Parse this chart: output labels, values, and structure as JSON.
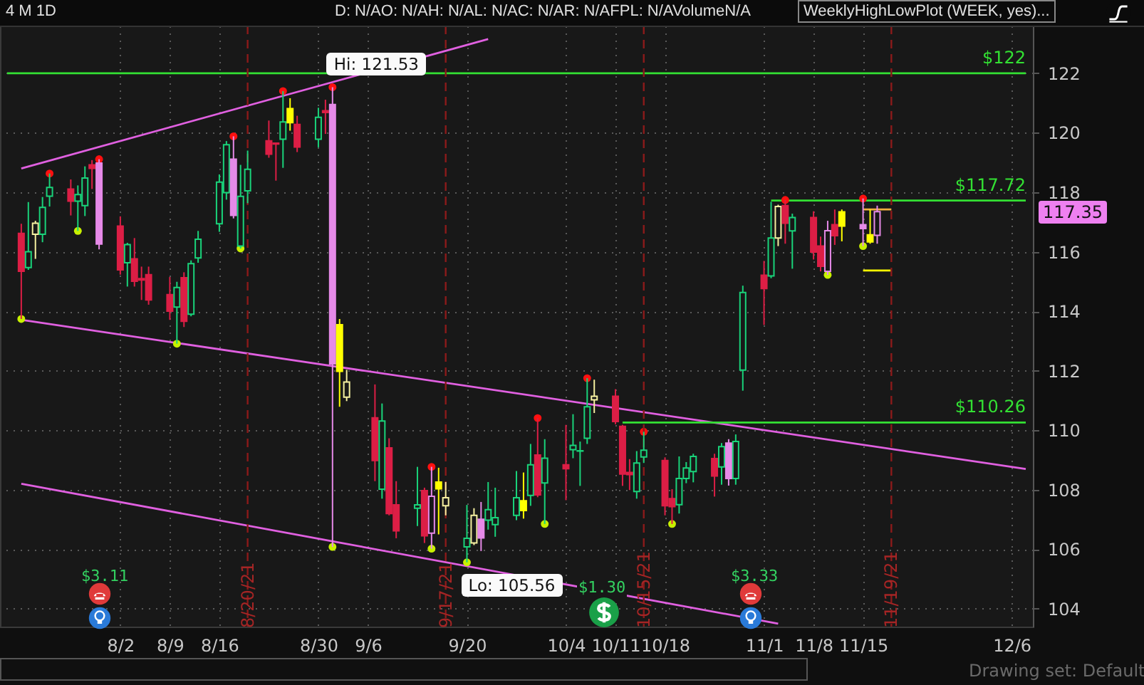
{
  "chart_data": {
    "type": "candlestick",
    "title": "4 M 1D",
    "x": [
      "--07-19",
      "--07-20",
      "--07-21",
      "--07-22",
      "--07-23",
      "--07-26",
      "--07-27",
      "--07-28",
      "--07-29",
      "--07-30",
      "--08-02",
      "--08-03",
      "--08-04",
      "--08-05",
      "--08-06",
      "--08-09",
      "--08-10",
      "--08-11",
      "--08-12",
      "--08-13",
      "--08-16",
      "--08-17",
      "--08-18",
      "--08-19",
      "--08-20",
      "--08-23",
      "--08-24",
      "--08-25",
      "--08-26",
      "--08-27",
      "--08-30",
      "--08-31",
      "--09-01",
      "--09-02",
      "--09-03",
      "--09-07",
      "--09-08",
      "--09-09",
      "--09-10",
      "--09-13",
      "--09-14",
      "--09-15",
      "--09-16",
      "--09-17",
      "--09-20",
      "--09-21",
      "--09-22",
      "--09-23",
      "--09-24",
      "--09-27",
      "--09-28",
      "--09-29",
      "--09-30",
      "--10-01",
      "--10-04",
      "--10-05",
      "--10-06",
      "--10-07",
      "--10-08",
      "--10-11",
      "--10-12",
      "--10-13",
      "--10-14",
      "--10-15",
      "--10-18",
      "--10-19",
      "--10-20",
      "--10-21",
      "--10-22",
      "--10-25",
      "--10-26",
      "--10-27",
      "--10-28",
      "--10-29",
      "--11-01",
      "--11-02",
      "--11-03",
      "--11-04",
      "--11-05",
      "--11-08",
      "--11-09",
      "--11-10",
      "--11-11",
      "--11-12",
      "--11-15",
      "--11-16",
      "--11-17"
    ],
    "ohlc": [
      [
        116.62,
        116.94,
        113.74,
        115.34
      ],
      [
        115.47,
        117.67,
        115.39,
        116.0
      ],
      [
        116.59,
        117.04,
        115.76,
        116.96
      ],
      [
        116.59,
        117.84,
        116.32,
        117.49
      ],
      [
        117.87,
        118.63,
        117.52,
        118.16
      ],
      [
        118.11,
        118.43,
        117.22,
        117.7
      ],
      [
        117.7,
        118.23,
        116.7,
        117.92
      ],
      [
        117.55,
        118.87,
        117.2,
        118.48
      ],
      [
        118.92,
        119.08,
        118.11,
        118.8
      ],
      [
        118.98,
        119.11,
        116.08,
        116.26
      ],
      [
        116.86,
        117.19,
        115.23,
        115.39
      ],
      [
        115.63,
        116.3,
        114.83,
        116.24
      ],
      [
        115.76,
        116.46,
        114.83,
        115.01
      ],
      [
        115.1,
        115.5,
        114.38,
        115.05
      ],
      [
        115.23,
        115.5,
        114.22,
        114.38
      ],
      [
        114.56,
        115.15,
        113.71,
        114.0
      ],
      [
        114.14,
        114.99,
        112.91,
        114.8
      ],
      [
        115.13,
        115.31,
        113.47,
        113.66
      ],
      [
        113.9,
        115.71,
        113.83,
        115.6
      ],
      [
        115.79,
        116.7,
        115.63,
        116.42
      ],
      [
        116.94,
        118.6,
        116.67,
        118.34
      ],
      [
        117.99,
        119.72,
        117.75,
        119.6
      ],
      [
        119.11,
        119.88,
        117.12,
        117.22
      ],
      [
        116.19,
        118.92,
        116.11,
        117.86
      ],
      [
        118.05,
        119.4,
        117.63,
        118.77
      ],
      [
        119.73,
        120.41,
        119.16,
        119.28
      ],
      [
        119.65,
        119.65,
        118.39,
        119.62
      ],
      [
        119.78,
        121.4,
        118.82,
        120.36
      ],
      [
        120.81,
        121.16,
        120.07,
        120.34
      ],
      [
        120.28,
        120.57,
        119.35,
        119.52
      ],
      [
        119.78,
        120.84,
        119.51,
        120.52
      ],
      [
        120.74,
        121.11,
        119.96,
        120.68
      ],
      [
        120.95,
        121.53,
        106.08,
        112.23
      ],
      [
        113.55,
        113.74,
        110.79,
        111.98
      ],
      [
        111.11,
        112.03,
        110.98,
        111.62
      ],
      [
        110.42,
        111.54,
        108.29,
        108.98
      ],
      [
        108.02,
        110.9,
        107.7,
        110.31
      ],
      [
        109.41,
        109.73,
        107.14,
        107.2
      ],
      [
        107.49,
        108.29,
        106.37,
        106.62
      ],
      [
        107.38,
        108.77,
        106.78,
        107.49
      ],
      [
        107.97,
        108.07,
        106.21,
        106.45
      ],
      [
        106.54,
        108.77,
        106.02,
        107.78
      ],
      [
        108.26,
        108.74,
        106.5,
        108.03
      ],
      [
        107.46,
        108.26,
        107.14,
        107.73
      ],
      [
        106.08,
        107.49,
        105.56,
        106.37
      ],
      [
        106.21,
        107.38,
        106.14,
        107.14
      ],
      [
        107.01,
        107.59,
        105.94,
        106.38
      ],
      [
        106.98,
        108.26,
        106.66,
        107.33
      ],
      [
        106.83,
        108.07,
        106.42,
        107.06
      ],
      [
        107.14,
        108.63,
        106.98,
        107.73
      ],
      [
        107.63,
        108.58,
        107.03,
        107.3
      ],
      [
        107.81,
        109.54,
        107.46,
        108.84
      ],
      [
        109.17,
        110.41,
        107.75,
        107.83
      ],
      [
        108.23,
        109.7,
        106.85,
        109.06
      ],
      [
        108.84,
        110.18,
        107.65,
        108.71
      ],
      [
        109.35,
        110.54,
        109.06,
        109.49
      ],
      [
        109.3,
        109.62,
        108.13,
        109.31
      ],
      [
        109.73,
        111.75,
        109.54,
        110.79
      ],
      [
        111.02,
        111.7,
        110.58,
        111.14
      ],
      [
        111.14,
        111.38,
        110.2,
        110.29
      ],
      [
        110.13,
        110.18,
        108.13,
        108.53
      ],
      [
        108.58,
        109.03,
        107.99,
        108.51
      ],
      [
        107.94,
        109.3,
        107.7,
        108.9
      ],
      [
        109.1,
        109.95,
        108.9,
        109.33
      ],
      [
        108.98,
        109.09,
        107.14,
        107.46
      ],
      [
        107.7,
        108.02,
        106.85,
        107.43
      ],
      [
        107.5,
        109.12,
        107.2,
        108.38
      ],
      [
        108.38,
        108.93,
        108.22,
        108.73
      ],
      [
        108.61,
        109.21,
        108.25,
        109.12
      ],
      [
        109.05,
        109.21,
        107.77,
        108.46
      ],
      [
        108.77,
        109.57,
        108.17,
        109.45
      ],
      [
        109.57,
        109.7,
        108.14,
        108.38
      ],
      [
        108.38,
        109.86,
        108.17,
        109.62
      ],
      [
        112.02,
        114.86,
        111.33,
        114.63
      ],
      [
        115.21,
        115.69,
        113.54,
        114.76
      ],
      [
        115.19,
        117.68,
        115.11,
        116.46
      ],
      [
        116.46,
        117.58,
        116.19,
        117.52
      ],
      [
        117.55,
        117.74,
        116.27,
        116.96
      ],
      [
        116.7,
        117.28,
        115.43,
        117.15
      ],
      [
        117.15,
        117.36,
        115.74,
        115.99
      ],
      [
        116.19,
        116.51,
        115.34,
        115.51
      ],
      [
        115.34,
        117.04,
        115.22,
        116.71
      ],
      [
        116.91,
        117.42,
        116.23,
        116.54
      ],
      [
        117.34,
        117.42,
        116.35,
        116.86
      ],
      [
        116.91,
        117.79,
        116.19,
        116.78
      ],
      [
        116.57,
        117.42,
        116.27,
        116.33
      ],
      [
        116.55,
        117.55,
        116.27,
        117.35
      ]
    ],
    "colors": [
      "#dc1e45",
      "#19d37a",
      "#f5f0a0",
      "#19d37a",
      "#19d37a",
      "#dc1e45",
      "#19d37a",
      "#19d37a",
      "#dc1e45",
      "#e68ae8",
      "#dc1e45",
      "#19d37a",
      "#dc1e45",
      "#dc1e45",
      "#dc1e45",
      "#dc1e45",
      "#19d37a",
      "#dc1e45",
      "#19d37a",
      "#19d37a",
      "#19d37a",
      "#19d37a",
      "#e68ae8",
      "#19d37a",
      "#19d37a",
      "#dc1e45",
      "#dc1e45",
      "#19d37a",
      "#ffff00",
      "#dc1e45",
      "#19d37a",
      "#dc1e45",
      "#e68ae8",
      "#ffff00",
      "#f5f0a0",
      "#dc1e45",
      "#19d37a",
      "#dc1e45",
      "#dc1e45",
      "#19d37a",
      "#dc1e45",
      "#e68ae8",
      "#ffff00",
      "#f5f0a0",
      "#19d37a",
      "#f5f0a0",
      "#e68ae8",
      "#19d37a",
      "#19d37a",
      "#19d37a",
      "#ffff00",
      "#19d37a",
      "#dc1e45",
      "#19d37a",
      "#dc1e45",
      "#19d37a",
      "#19d37a",
      "#19d37a",
      "#f5f0a0",
      "#dc1e45",
      "#dc1e45",
      "#dc1e45",
      "#19d37a",
      "#19d37a",
      "#dc1e45",
      "#dc1e45",
      "#19d37a",
      "#19d37a",
      "#19d37a",
      "#dc1e45",
      "#19d37a",
      "#e68ae8",
      "#19d37a",
      "#19d37a",
      "#dc1e45",
      "#19d37a",
      "#f5f0a0",
      "#dc1e45",
      "#19d37a",
      "#dc1e45",
      "#dc1e45",
      "#e68ae8",
      "#dc1e45",
      "#ffff00",
      "#e68ae8",
      "#ffff00",
      "#e68ae8"
    ],
    "series": [
      {
        "type": "line",
        "color": "#e060e0",
        "x": [
          "--07-19",
          "--09-23"
        ],
        "values": [
          118.8,
          123.15
        ]
      },
      {
        "type": "line",
        "color": "#e060e0",
        "x": [
          "--07-19",
          "--12-08"
        ],
        "values": [
          113.71,
          108.7
        ]
      },
      {
        "type": "line",
        "color": "#e060e0",
        "x": [
          "--07-19",
          "--11-03"
        ],
        "values": [
          108.2,
          103.5
        ]
      },
      {
        "type": "line",
        "name": "$122",
        "color": "#33e033",
        "x": [
          "--07-17",
          "--12-08"
        ],
        "values": [
          122,
          122
        ]
      },
      {
        "type": "line",
        "name": "$117.72",
        "color": "#33e033",
        "x": [
          "--11-02",
          "--12-08"
        ],
        "values": [
          117.72,
          117.72
        ]
      },
      {
        "type": "line",
        "name": "$110.26",
        "color": "#33e033",
        "x": [
          "--10-12",
          "--12-08"
        ],
        "values": [
          110.26,
          110.26
        ]
      },
      {
        "type": "line",
        "color": "#f0b040",
        "x": [
          "--11-15",
          "--11-19"
        ],
        "values": [
          117.42,
          117.42
        ]
      },
      {
        "type": "line",
        "color": "#ffff00",
        "x": [
          "--11-15",
          "--11-19"
        ],
        "values": [
          115.37,
          115.37
        ]
      },
      {
        "type": "scatter",
        "color": "#ff1010",
        "x": [
          "--07-23",
          "--07-30",
          "--08-18",
          "--08-25",
          "--09-01",
          "--09-15",
          "--09-30",
          "--10-07",
          "--10-15",
          "--11-04",
          "--11-15"
        ],
        "values": [
          118.63,
          119.11,
          119.88,
          121.4,
          121.53,
          108.77,
          110.41,
          111.75,
          109.95,
          117.74,
          117.79
        ]
      },
      {
        "type": "scatter",
        "color": "#c8f000",
        "x": [
          "--07-19",
          "--07-27",
          "--08-10",
          "--08-19",
          "--09-01",
          "--09-15",
          "--09-20",
          "--10-01",
          "--10-19",
          "--11-10",
          "--11-15"
        ],
        "values": [
          113.74,
          116.7,
          112.91,
          116.11,
          106.08,
          106.02,
          105.56,
          106.85,
          106.85,
          115.22,
          116.19
        ]
      }
    ],
    "ref_lines": [
      {
        "axis": "x",
        "value": "--08-20",
        "label": "8/20/21",
        "color": "#8b1a1a",
        "line_style": "dashed"
      },
      {
        "axis": "x",
        "value": "--09-17",
        "label": "9/17/21",
        "color": "#8b1a1a",
        "line_style": "dashed"
      },
      {
        "axis": "x",
        "value": "--10-15",
        "label": "10/15/21",
        "color": "#8b1a1a",
        "line_style": "dashed"
      },
      {
        "axis": "x",
        "value": "--11-19",
        "label": "11/19/21",
        "color": "#8b1a1a",
        "line_style": "dashed"
      }
    ],
    "xlim": [
      "--07-17",
      "--12-08"
    ],
    "ylim": [
      103.4,
      123.6
    ],
    "yticks": [
      104,
      106,
      108,
      110,
      112,
      114,
      116,
      118,
      120,
      122
    ],
    "xticks": [
      {
        "value": "--08-02",
        "label": "8/2"
      },
      {
        "value": "--08-09",
        "label": "8/9"
      },
      {
        "value": "--08-16",
        "label": "8/16"
      },
      {
        "value": "--08-30",
        "label": "8/30"
      },
      {
        "value": "--09-06",
        "label": "9/6"
      },
      {
        "value": "--09-20",
        "label": "9/20"
      },
      {
        "value": "--10-04",
        "label": "10/4"
      },
      {
        "value": "--10-11",
        "label": "10/11"
      },
      {
        "value": "--10-18",
        "label": "10/18"
      },
      {
        "value": "--11-01",
        "label": "11/1"
      },
      {
        "value": "--11-08",
        "label": "11/8"
      },
      {
        "value": "--11-15",
        "label": "11/15"
      },
      {
        "value": "--12-06",
        "label": "12/6"
      }
    ],
    "grid": true,
    "annotations": [
      "D: N/AO: N/AH: N/AL: N/AC: N/AR: N/AFPL: N/AVolumeN/A",
      "WeeklyHighLowPlot (WEEK, yes)...",
      {
        "text": "Hi: 121.53",
        "x": "--09-01",
        "y": 121.53
      },
      {
        "text": "Lo: 105.56",
        "x": "--09-20",
        "y": 105.56
      },
      "117.35",
      "$3.11",
      "$1.30",
      "$3.33",
      "Drawing set: Default"
    ]
  }
}
